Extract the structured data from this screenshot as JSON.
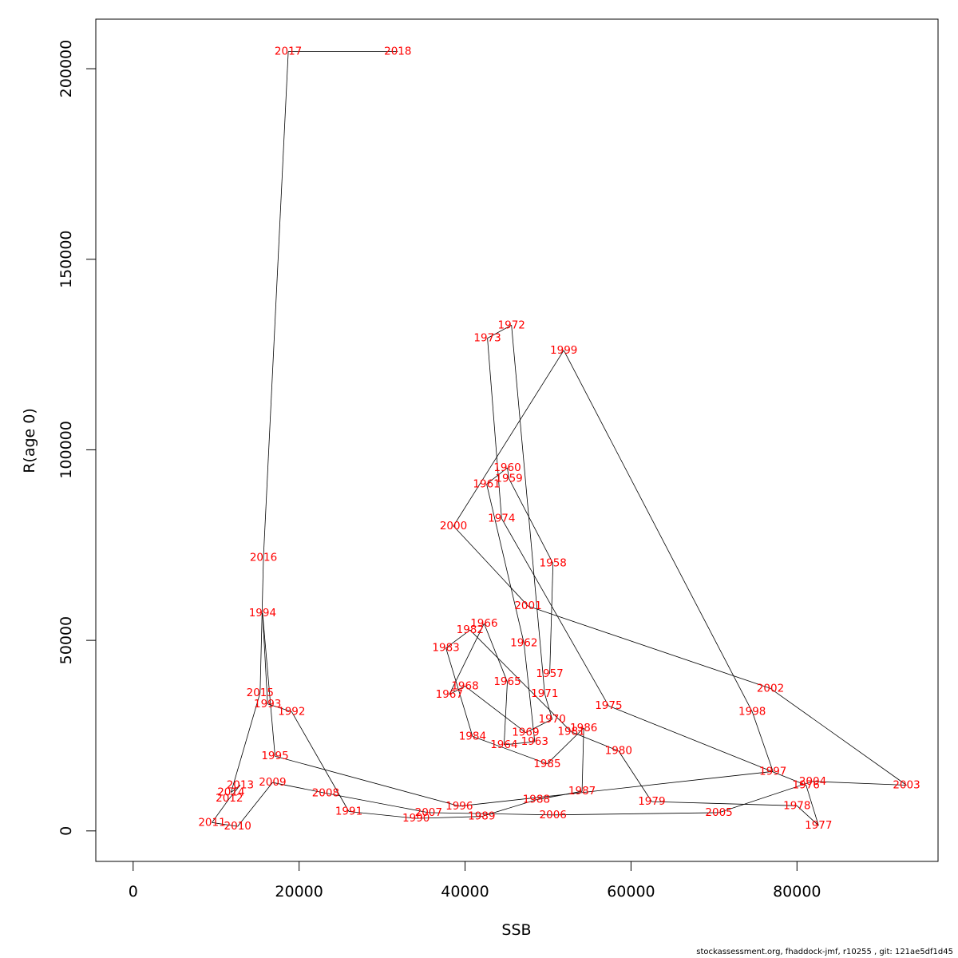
{
  "chart_data": {
    "type": "line",
    "subtype": "labelled-path",
    "title": "",
    "xlabel": "SSB",
    "ylabel": "R(age 0)",
    "xlim": [
      -4500,
      97000
    ],
    "ylim": [
      -8000,
      213000
    ],
    "x_ticks": [
      0,
      20000,
      40000,
      60000,
      80000
    ],
    "y_ticks": [
      0,
      50000,
      100000,
      150000,
      200000
    ],
    "grid": false,
    "line_color": "#000000",
    "label_color": "#ff0000",
    "series": [
      {
        "points": [
          {
            "year": "1957",
            "ssb": 50200,
            "r": 41200
          },
          {
            "year": "1958",
            "ssb": 50600,
            "r": 70200
          },
          {
            "year": "1959",
            "ssb": 45300,
            "r": 92400
          },
          {
            "year": "1960",
            "ssb": 45100,
            "r": 95300
          },
          {
            "year": "1961",
            "ssb": 42600,
            "r": 91000
          },
          {
            "year": "1962",
            "ssb": 47100,
            "r": 49300
          },
          {
            "year": "1963",
            "ssb": 48400,
            "r": 23400
          },
          {
            "year": "1964",
            "ssb": 44700,
            "r": 22600
          },
          {
            "year": "1965",
            "ssb": 45100,
            "r": 39100
          },
          {
            "year": "1966",
            "ssb": 42300,
            "r": 54400
          },
          {
            "year": "1967",
            "ssb": 38100,
            "r": 35800
          },
          {
            "year": "1968",
            "ssb": 40000,
            "r": 38000
          },
          {
            "year": "1969",
            "ssb": 47300,
            "r": 25800
          },
          {
            "year": "1970",
            "ssb": 50500,
            "r": 29300
          },
          {
            "year": "1971",
            "ssb": 49600,
            "r": 36000
          },
          {
            "year": "1972",
            "ssb": 45600,
            "r": 132700
          },
          {
            "year": "1973",
            "ssb": 42700,
            "r": 129300
          },
          {
            "year": "1974",
            "ssb": 44400,
            "r": 82000
          },
          {
            "year": "1975",
            "ssb": 57300,
            "r": 32800
          },
          {
            "year": "1976",
            "ssb": 81100,
            "r": 12000
          },
          {
            "year": "1977",
            "ssb": 82600,
            "r": 1400
          },
          {
            "year": "1978",
            "ssb": 80000,
            "r": 6600
          },
          {
            "year": "1979",
            "ssb": 62500,
            "r": 7700
          },
          {
            "year": "1980",
            "ssb": 58500,
            "r": 21000
          },
          {
            "year": "1981",
            "ssb": 52800,
            "r": 26000
          },
          {
            "year": "1982",
            "ssb": 40600,
            "r": 52700
          },
          {
            "year": "1983",
            "ssb": 37700,
            "r": 48000
          },
          {
            "year": "1984",
            "ssb": 40900,
            "r": 24800
          },
          {
            "year": "1985",
            "ssb": 49900,
            "r": 17600
          },
          {
            "year": "1986",
            "ssb": 54300,
            "r": 27000
          },
          {
            "year": "1987",
            "ssb": 54100,
            "r": 10400
          },
          {
            "year": "1988",
            "ssb": 48600,
            "r": 8200
          },
          {
            "year": "1989",
            "ssb": 42000,
            "r": 3800
          },
          {
            "year": "1990",
            "ssb": 34100,
            "r": 3300
          },
          {
            "year": "1991",
            "ssb": 26000,
            "r": 5100
          },
          {
            "year": "1992",
            "ssb": 19100,
            "r": 31300
          },
          {
            "year": "1993",
            "ssb": 16200,
            "r": 33300
          },
          {
            "year": "1994",
            "ssb": 15600,
            "r": 57100
          },
          {
            "year": "1995",
            "ssb": 17100,
            "r": 19600
          },
          {
            "year": "1996",
            "ssb": 39300,
            "r": 6500
          },
          {
            "year": "1997",
            "ssb": 77100,
            "r": 15600
          },
          {
            "year": "1998",
            "ssb": 74600,
            "r": 31300
          },
          {
            "year": "1999",
            "ssb": 51900,
            "r": 126100
          },
          {
            "year": "2000",
            "ssb": 38600,
            "r": 80000
          },
          {
            "year": "2001",
            "ssb": 47600,
            "r": 59000
          },
          {
            "year": "2002",
            "ssb": 76800,
            "r": 37400
          },
          {
            "year": "2003",
            "ssb": 93200,
            "r": 12000
          },
          {
            "year": "2004",
            "ssb": 81900,
            "r": 13000
          },
          {
            "year": "2005",
            "ssb": 70600,
            "r": 4800
          },
          {
            "year": "2006",
            "ssb": 50600,
            "r": 4200
          },
          {
            "year": "2007",
            "ssb": 35600,
            "r": 4800
          },
          {
            "year": "2008",
            "ssb": 23200,
            "r": 9900
          },
          {
            "year": "2009",
            "ssb": 16800,
            "r": 12700
          },
          {
            "year": "2010",
            "ssb": 12600,
            "r": 1200
          },
          {
            "year": "2011",
            "ssb": 9500,
            "r": 2200
          },
          {
            "year": "2012",
            "ssb": 11600,
            "r": 8500
          },
          {
            "year": "2013",
            "ssb": 12900,
            "r": 12000
          },
          {
            "year": "2014",
            "ssb": 11800,
            "r": 10100
          },
          {
            "year": "2015",
            "ssb": 15300,
            "r": 36200
          },
          {
            "year": "2016",
            "ssb": 15700,
            "r": 71700
          },
          {
            "year": "2017",
            "ssb": 18700,
            "r": 204500
          },
          {
            "year": "2018",
            "ssb": 31900,
            "r": 204500
          }
        ]
      }
    ]
  },
  "footer": {
    "text": "stockassessment.org, fhaddock-jmf, r10255 , git: 121ae5df1d45"
  }
}
